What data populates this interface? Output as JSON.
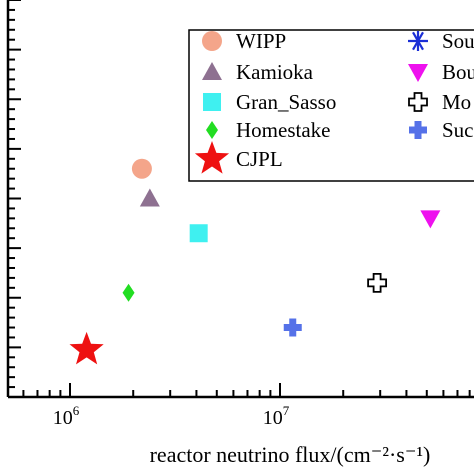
{
  "chart_data": {
    "type": "scatter",
    "xlabel": "reactor neutrino flux/(cm⁻²·s⁻¹)",
    "xscale": "log",
    "xlim": [
      500000,
      100000000
    ],
    "ylim": [
      0,
      8
    ],
    "x_tick_labels": [
      {
        "value": 1000000,
        "base": "10",
        "exp": "6"
      },
      {
        "value": 10000000,
        "base": "10",
        "exp": "7"
      }
    ],
    "legend": {
      "placement": "top-right",
      "border": true
    },
    "series": [
      {
        "name": "WIPP",
        "marker": "circle",
        "color": "#f4a58a",
        "points": [
          [
            2200000,
            4.6
          ]
        ]
      },
      {
        "name": "Kamioka",
        "marker": "triangle-up",
        "color": "#8e7191",
        "points": [
          [
            2400000,
            4.0
          ]
        ]
      },
      {
        "name": "Gran_Sasso",
        "marker": "square",
        "color": "#3ff0f0",
        "points": [
          [
            4100000,
            3.3
          ]
        ]
      },
      {
        "name": "Homestake",
        "marker": "diamond",
        "color": "#22dd22",
        "points": [
          [
            1900000,
            2.1
          ]
        ]
      },
      {
        "name": "CJPL",
        "marker": "star",
        "color": "#ee1111",
        "points": [
          [
            1200000,
            0.95
          ]
        ]
      },
      {
        "name": "Sou",
        "marker": "asterisk",
        "color": "#1a2ed6",
        "points": []
      },
      {
        "name": "Bou",
        "marker": "triangle-down",
        "color": "#ee11ee",
        "points": [
          [
            52000000,
            3.6
          ]
        ]
      },
      {
        "name": "Mo",
        "marker": "cross-open",
        "color": "#000000",
        "points": [
          [
            29000000,
            2.3
          ]
        ]
      },
      {
        "name": "Suc",
        "marker": "cross-filled",
        "color": "#5571e8",
        "points": [
          [
            11500000,
            1.4
          ]
        ]
      }
    ]
  }
}
